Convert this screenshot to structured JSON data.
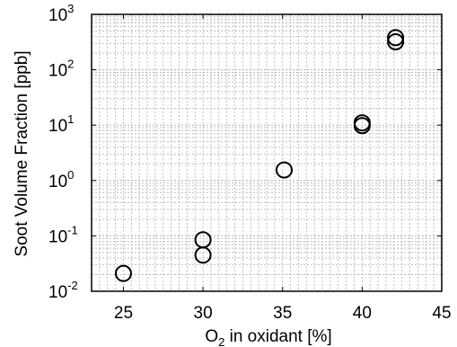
{
  "chart_data": {
    "type": "scatter",
    "title": "",
    "xlabel": {
      "prefix": "O",
      "subscript": "2",
      "suffix": " in oxidant [%]"
    },
    "ylabel": "Soot Volume Fraction [ppb]",
    "xlim": [
      23,
      45
    ],
    "ylim": [
      0.01,
      1000
    ],
    "yscale": "log",
    "grid": true,
    "legend": "none",
    "x_ticks": [
      "25",
      "30",
      "35",
      "40",
      "45"
    ],
    "y_ticks": [
      {
        "base": "10",
        "exp": "-2"
      },
      {
        "base": "10",
        "exp": "-1"
      },
      {
        "base": "10",
        "exp": "0"
      },
      {
        "base": "10",
        "exp": "1"
      },
      {
        "base": "10",
        "exp": "2"
      },
      {
        "base": "10",
        "exp": "3"
      }
    ],
    "marker": "open-circle",
    "marker_color": "#000000",
    "grid_color": "#b0b0b0",
    "points": [
      {
        "x": 25.0,
        "y": 0.021
      },
      {
        "x": 30.0,
        "y": 0.045
      },
      {
        "x": 30.0,
        "y": 0.085
      },
      {
        "x": 35.1,
        "y": 1.55
      },
      {
        "x": 40.0,
        "y": 9.8
      },
      {
        "x": 40.0,
        "y": 11.0
      },
      {
        "x": 42.1,
        "y": 320
      },
      {
        "x": 42.1,
        "y": 380
      }
    ]
  }
}
